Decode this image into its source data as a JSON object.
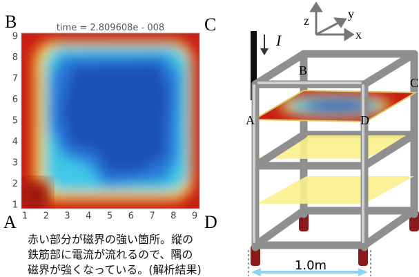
{
  "heatmap": {
    "title": "time = 2.809608e - 008",
    "xlim": [
      1,
      9
    ],
    "ylim": [
      1,
      9
    ],
    "xticks": [
      1,
      2,
      3,
      4,
      5,
      6,
      7,
      8,
      9
    ],
    "yticks": [
      1,
      2,
      3,
      4,
      5,
      6,
      7,
      8,
      9
    ]
  },
  "corners": {
    "B": "B",
    "C": "C",
    "A": "A",
    "D": "D"
  },
  "caption": [
    "赤い部分が磁界の強い箇所。縦の",
    "鉄筋部に電流が流れるので、隅の",
    "磁界が強くなっている。(解析結果)"
  ],
  "diagram": {
    "current": "I",
    "axes": {
      "z": "z",
      "y": "y",
      "x": "x"
    },
    "labels": {
      "B": "B",
      "C": "C",
      "A": "A",
      "D": "D"
    },
    "dimension": "1.0m"
  }
}
